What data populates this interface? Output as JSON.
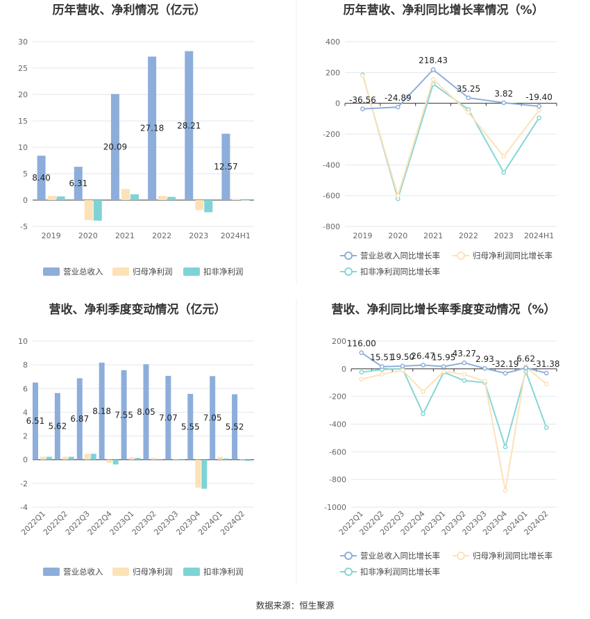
{
  "source_label": "数据来源：恒生聚源",
  "colors": {
    "revenue": "#8DAEDA",
    "net_profit": "#FCE2B6",
    "deducted_profit": "#7FD3D6",
    "revenue_line": "#8DAEDA",
    "net_profit_line": "#FCE2B6",
    "deducted_line": "#86D6D6",
    "grid": "#E3E6EE",
    "axis": "#333333"
  },
  "chart_data": [
    {
      "id": "annual-revenue-profit",
      "type": "bar",
      "title": "历年营收、净利情况（亿元）",
      "categories": [
        "2019",
        "2020",
        "2021",
        "2022",
        "2023",
        "2024H1"
      ],
      "ylim": [
        -5,
        30
      ],
      "yticks": [
        -5,
        0,
        5,
        10,
        15,
        20,
        25,
        30
      ],
      "grid": true,
      "legend_position": "bottom",
      "series": [
        {
          "name": "营业总收入",
          "values": [
            8.4,
            6.31,
            20.09,
            27.18,
            28.21,
            12.57
          ],
          "labels": [
            "8.40",
            "6.31",
            "20.09",
            "27.18",
            "28.21",
            "12.57"
          ]
        },
        {
          "name": "归母净利润",
          "values": [
            0.8,
            -3.8,
            2.1,
            0.8,
            -1.9,
            0.2
          ]
        },
        {
          "name": "扣非净利润",
          "values": [
            0.7,
            -3.9,
            1.1,
            0.6,
            -2.3,
            0.0
          ]
        }
      ]
    },
    {
      "id": "annual-growth",
      "type": "line",
      "title": "历年营收、净利同比增长率情况（%）",
      "categories": [
        "2019",
        "2020",
        "2021",
        "2022",
        "2023",
        "2024H1"
      ],
      "ylim": [
        -800,
        400
      ],
      "yticks": [
        -800,
        -600,
        -400,
        -200,
        0,
        200,
        400
      ],
      "grid": true,
      "legend_position": "bottom",
      "series": [
        {
          "name": "营业总收入同比增长率",
          "values": [
            -36.56,
            -24.89,
            218.43,
            35.25,
            3.82,
            -19.4
          ],
          "labels": [
            "-36.56",
            "-24.89",
            "218.43",
            "35.25",
            "3.82",
            "-19.40"
          ]
        },
        {
          "name": "归母净利润同比增长率",
          "values": [
            180,
            -600,
            155,
            -60,
            -345,
            -45
          ]
        },
        {
          "name": "扣非净利润同比增长率",
          "values": [
            185,
            -620,
            125,
            -40,
            -450,
            -95
          ]
        }
      ]
    },
    {
      "id": "quarterly-revenue-profit",
      "type": "bar",
      "title": "营收、净利季度变动情况（亿元）",
      "categories": [
        "2022Q1",
        "2022Q2",
        "2022Q3",
        "2022Q4",
        "2023Q1",
        "2023Q2",
        "2023Q3",
        "2023Q4",
        "2024Q1",
        "2024Q2"
      ],
      "ylim": [
        -4,
        10
      ],
      "yticks": [
        -4,
        -2,
        0,
        2,
        4,
        6,
        8,
        10
      ],
      "grid": true,
      "legend_position": "bottom",
      "series": [
        {
          "name": "营业总收入",
          "values": [
            6.51,
            5.62,
            6.87,
            8.18,
            7.55,
            8.05,
            7.07,
            5.55,
            7.05,
            5.52
          ],
          "labels": [
            "6.51",
            "5.62",
            "6.87",
            "8.18",
            "7.55",
            "8.05",
            "7.07",
            "5.55",
            "7.05",
            "5.52"
          ]
        },
        {
          "name": "归母净利润",
          "values": [
            0.25,
            0.25,
            0.5,
            -0.25,
            0.2,
            0.15,
            0.05,
            -2.35,
            0.25,
            0.05
          ]
        },
        {
          "name": "扣非净利润",
          "values": [
            0.25,
            0.25,
            0.5,
            -0.4,
            0.15,
            0.05,
            0.0,
            -2.45,
            0.1,
            -0.1
          ]
        }
      ]
    },
    {
      "id": "quarterly-growth",
      "type": "line",
      "title": "营收、净利同比增长率季度变动情况（%）",
      "categories": [
        "2022Q1",
        "2022Q2",
        "2022Q3",
        "2022Q4",
        "2023Q1",
        "2023Q2",
        "2023Q3",
        "2023Q4",
        "2024Q1",
        "2024Q2"
      ],
      "ylim": [
        -1000,
        200
      ],
      "yticks": [
        -1000,
        -800,
        -600,
        -400,
        -200,
        0,
        200
      ],
      "grid": true,
      "legend_position": "bottom",
      "series": [
        {
          "name": "营业总收入同比增长率",
          "values": [
            116.0,
            15.51,
            19.5,
            26.47,
            15.95,
            43.27,
            2.93,
            -32.19,
            6.62,
            -31.38
          ],
          "labels": [
            "116.00",
            "15.51",
            "19.50",
            "26.47",
            "15.95",
            "43.27",
            "2.93",
            "-32.19",
            "6.62",
            "-31.38"
          ]
        },
        {
          "name": "归母净利润同比增长率",
          "values": [
            -75,
            -40,
            -10,
            -165,
            -20,
            -40,
            -90,
            -880,
            15,
            -110
          ]
        },
        {
          "name": "扣非净利润同比增长率",
          "values": [
            -25,
            -5,
            0,
            -325,
            -25,
            -85,
            -100,
            -565,
            -20,
            -425
          ]
        }
      ]
    }
  ]
}
